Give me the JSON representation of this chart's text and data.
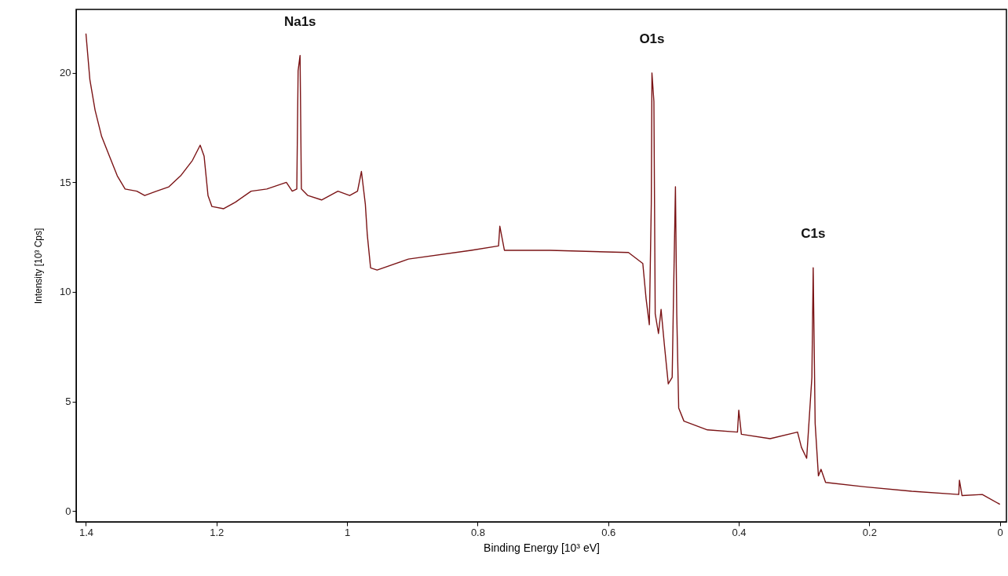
{
  "chart_data": {
    "type": "line",
    "xlabel": "Binding Energy [10³ eV]",
    "ylabel": "Intensity [10³ Cps]",
    "xlim": [
      1.415,
      -0.01
    ],
    "ylim": [
      -0.5,
      22.9
    ],
    "xticks": [
      1.4,
      1.2,
      1,
      0.8,
      0.6,
      0.4,
      0.2,
      0
    ],
    "yticks": [
      0,
      5,
      10,
      15,
      20
    ],
    "grid": false,
    "marker": "none",
    "line_style": "solid",
    "annotations": [
      {
        "text": "Na1s",
        "x": 1.072,
        "y": 20.8
      },
      {
        "text": "O1s",
        "x": 0.533,
        "y": 20.0
      },
      {
        "text": "C1s",
        "x": 0.286,
        "y": 11.1
      }
    ],
    "series": [
      {
        "color": "#7b1416",
        "x": [
          1.4,
          1.394,
          1.386,
          1.376,
          1.364,
          1.352,
          1.34,
          1.322,
          1.31,
          1.292,
          1.273,
          1.255,
          1.237,
          1.225,
          1.219,
          1.213,
          1.207,
          1.189,
          1.171,
          1.147,
          1.123,
          1.093,
          1.084,
          1.077,
          1.075,
          1.072,
          1.07,
          1.06,
          1.039,
          1.014,
          0.996,
          0.984,
          0.978,
          0.972,
          0.969,
          0.964,
          0.954,
          0.906,
          0.81,
          0.768,
          0.766,
          0.759,
          0.689,
          0.569,
          0.547,
          0.542,
          0.537,
          0.534,
          0.533,
          0.53,
          0.528,
          0.523,
          0.519,
          0.514,
          0.508,
          0.502,
          0.5,
          0.497,
          0.495,
          0.492,
          0.484,
          0.448,
          0.402,
          0.4,
          0.396,
          0.352,
          0.31,
          0.304,
          0.296,
          0.288,
          0.286,
          0.283,
          0.278,
          0.274,
          0.267,
          0.207,
          0.135,
          0.063,
          0.062,
          0.058,
          0.027,
          0.0
        ],
        "values": [
          21.8,
          19.7,
          18.3,
          17.1,
          16.2,
          15.3,
          14.7,
          14.6,
          14.4,
          14.6,
          14.8,
          15.3,
          16.0,
          16.7,
          16.2,
          14.4,
          13.9,
          13.8,
          14.1,
          14.6,
          14.7,
          15.0,
          14.6,
          14.7,
          20.1,
          20.8,
          14.7,
          14.4,
          14.2,
          14.6,
          14.4,
          14.6,
          15.5,
          14.0,
          12.6,
          11.1,
          11.0,
          11.5,
          11.9,
          12.1,
          13.0,
          11.9,
          11.9,
          11.8,
          11.3,
          9.7,
          8.5,
          14.0,
          20.0,
          18.7,
          9.0,
          8.1,
          9.2,
          7.6,
          5.8,
          6.1,
          9.7,
          14.8,
          9.0,
          4.7,
          4.1,
          3.7,
          3.6,
          4.6,
          3.5,
          3.3,
          3.6,
          2.9,
          2.4,
          6.1,
          11.1,
          4.0,
          1.6,
          1.9,
          1.3,
          1.1,
          0.9,
          0.75,
          1.4,
          0.7,
          0.75,
          0.3
        ]
      }
    ]
  }
}
